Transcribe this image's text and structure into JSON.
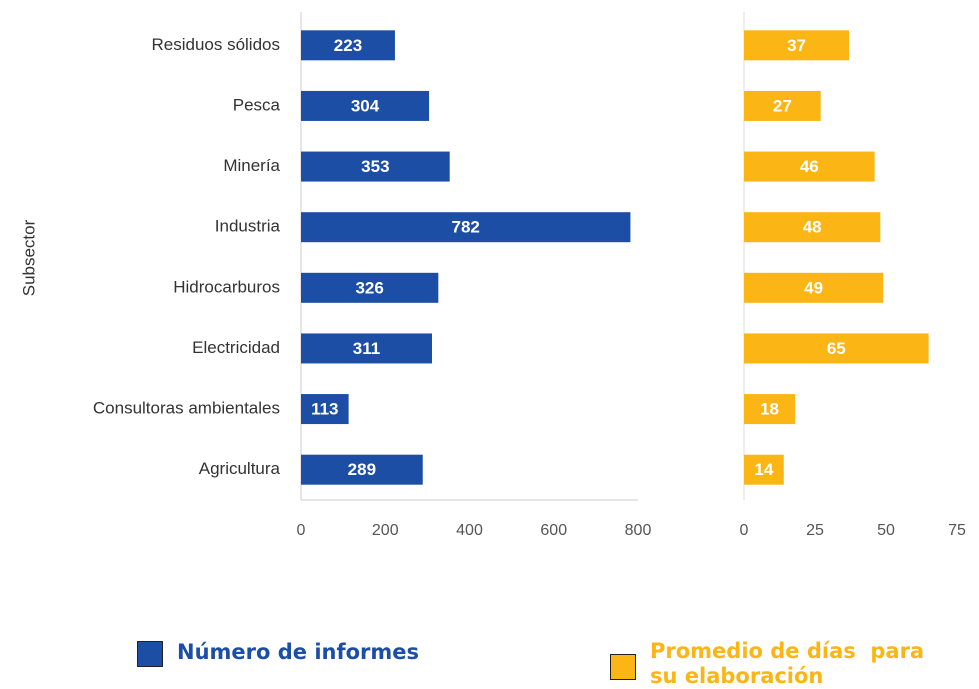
{
  "chart_data": [
    {
      "type": "bar",
      "orientation": "horizontal",
      "ylabel": "Subsector",
      "categories": [
        "Residuos sólidos",
        "Pesca",
        "Minería",
        "Industria",
        "Hidrocarburos",
        "Electricidad",
        "Consultoras ambientales",
        "Agricultura"
      ],
      "series": [
        {
          "name": "Número de informes",
          "color": "#1d4ea6",
          "values": [
            223,
            304,
            353,
            782,
            326,
            311,
            113,
            289
          ]
        }
      ],
      "xlim": [
        0,
        800
      ],
      "xticks": [
        0,
        200,
        400,
        600,
        800
      ]
    },
    {
      "type": "bar",
      "orientation": "horizontal",
      "series": [
        {
          "name": "Promedio de días  para su elaboración",
          "color": "#fbb514",
          "values": [
            37,
            27,
            46,
            48,
            49,
            65,
            18,
            14
          ]
        }
      ],
      "xlim": [
        0,
        75
      ],
      "xticks": [
        0,
        25,
        50,
        75
      ]
    }
  ]
}
